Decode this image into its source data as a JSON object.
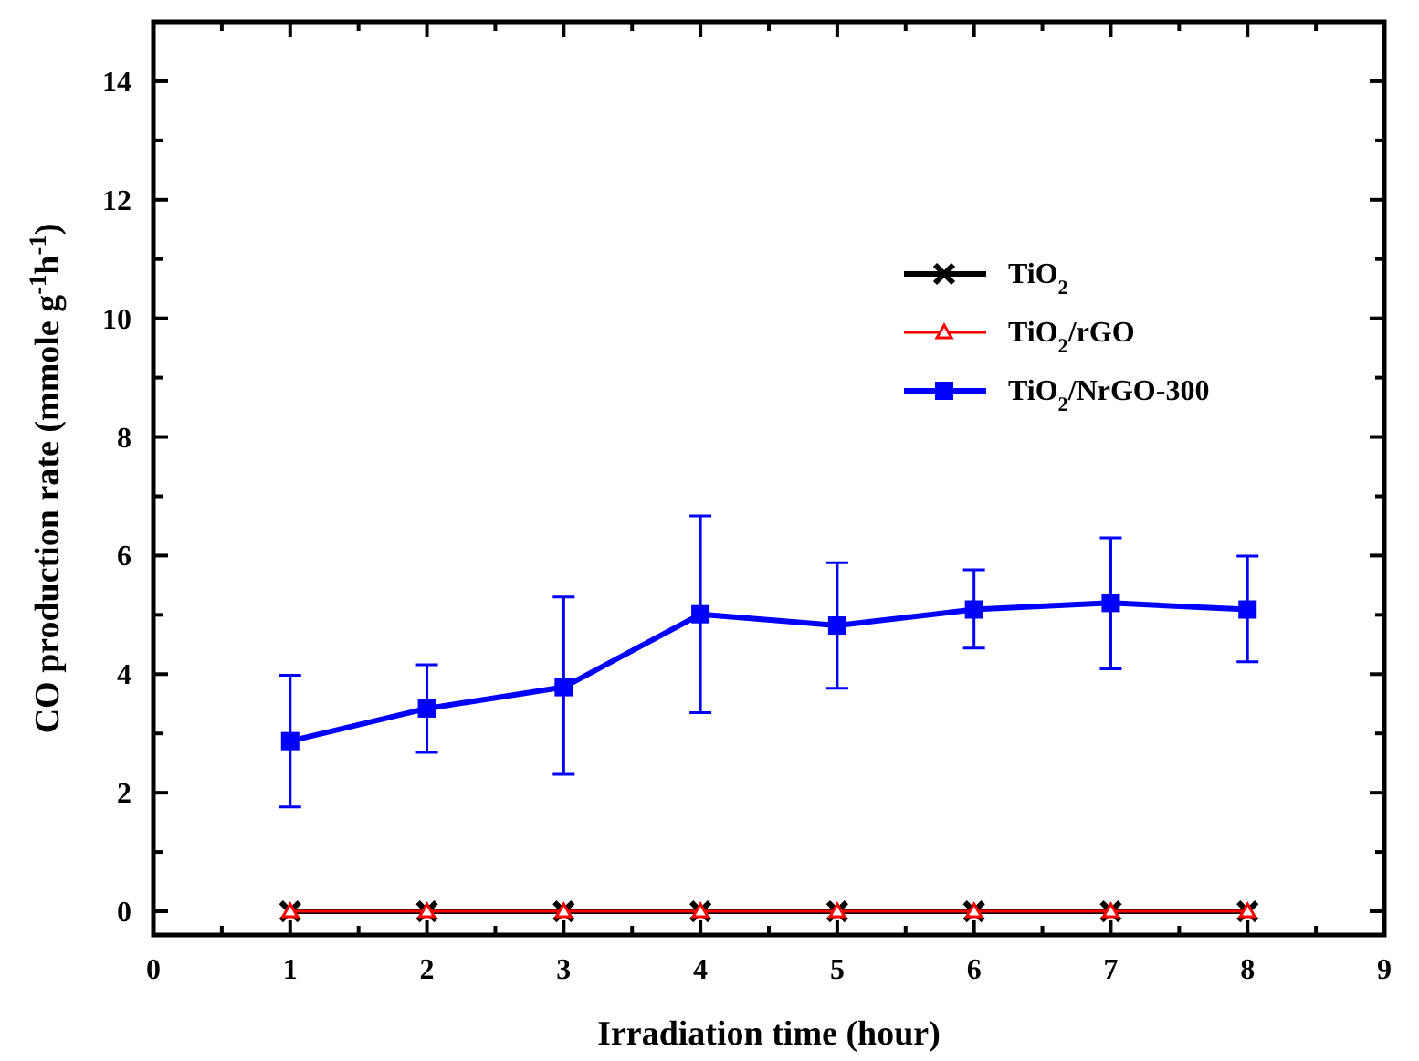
{
  "chart_data": {
    "type": "line",
    "xlabel": "Irradiation time (hour)",
    "ylabel": "CO production rate (mmole g$^{-1}$h$^{-1}$)",
    "xlim": [
      0,
      9
    ],
    "xticks": [
      0,
      {
        "value": 0.5,
        "label": null
      },
      1,
      {
        "value": 1.5,
        "label": null
      },
      2,
      {
        "value": 2.5,
        "label": null
      },
      3,
      {
        "value": 3.5,
        "label": null
      },
      4,
      {
        "value": 4.5,
        "label": null
      },
      5,
      {
        "value": 5.5,
        "label": null
      },
      6,
      {
        "value": 6.5,
        "label": null
      },
      7,
      {
        "value": 7.5,
        "label": null
      },
      8,
      {
        "value": 8.5,
        "label": null
      },
      9
    ],
    "ylim": [
      -0.4,
      15
    ],
    "yticks": [
      0,
      {
        "value": 1,
        "label": null
      },
      2,
      {
        "value": 3,
        "label": null
      },
      4,
      {
        "value": 5,
        "label": null
      },
      6,
      {
        "value": 7,
        "label": null
      },
      8,
      {
        "value": 9,
        "label": null
      },
      10,
      {
        "value": 11,
        "label": null
      },
      12,
      {
        "value": 13,
        "label": null
      },
      14
    ],
    "grid": false,
    "legend": "top right",
    "line_style": "solid",
    "x": [
      1,
      2,
      3,
      4,
      5,
      6,
      7,
      8
    ],
    "series": [
      {
        "name": "TiO$_{2}$",
        "color": "#000000",
        "marker": "cross",
        "values": [
          0,
          0,
          0,
          0,
          0,
          0,
          0,
          0
        ]
      },
      {
        "name": "TiO$_{2}$/rGO",
        "color": "#ff0000",
        "marker": "triangle",
        "values": [
          0,
          0,
          0,
          0,
          0,
          0,
          0,
          0
        ]
      },
      {
        "name": "TiO$_{2}$/NrGO-300",
        "color": "#0000ff",
        "marker": "square",
        "values": [
          2.87,
          3.42,
          3.78,
          5.01,
          4.82,
          5.09,
          5.2,
          5.09
        ],
        "errors": [
          [
            1.76,
            3.98
          ],
          [
            2.68,
            4.16
          ],
          [
            2.31,
            5.3
          ],
          [
            3.35,
            6.67
          ],
          [
            3.76,
            5.88
          ],
          [
            4.44,
            5.76
          ],
          [
            4.09,
            6.3
          ],
          [
            4.21,
            5.99
          ]
        ]
      }
    ]
  }
}
